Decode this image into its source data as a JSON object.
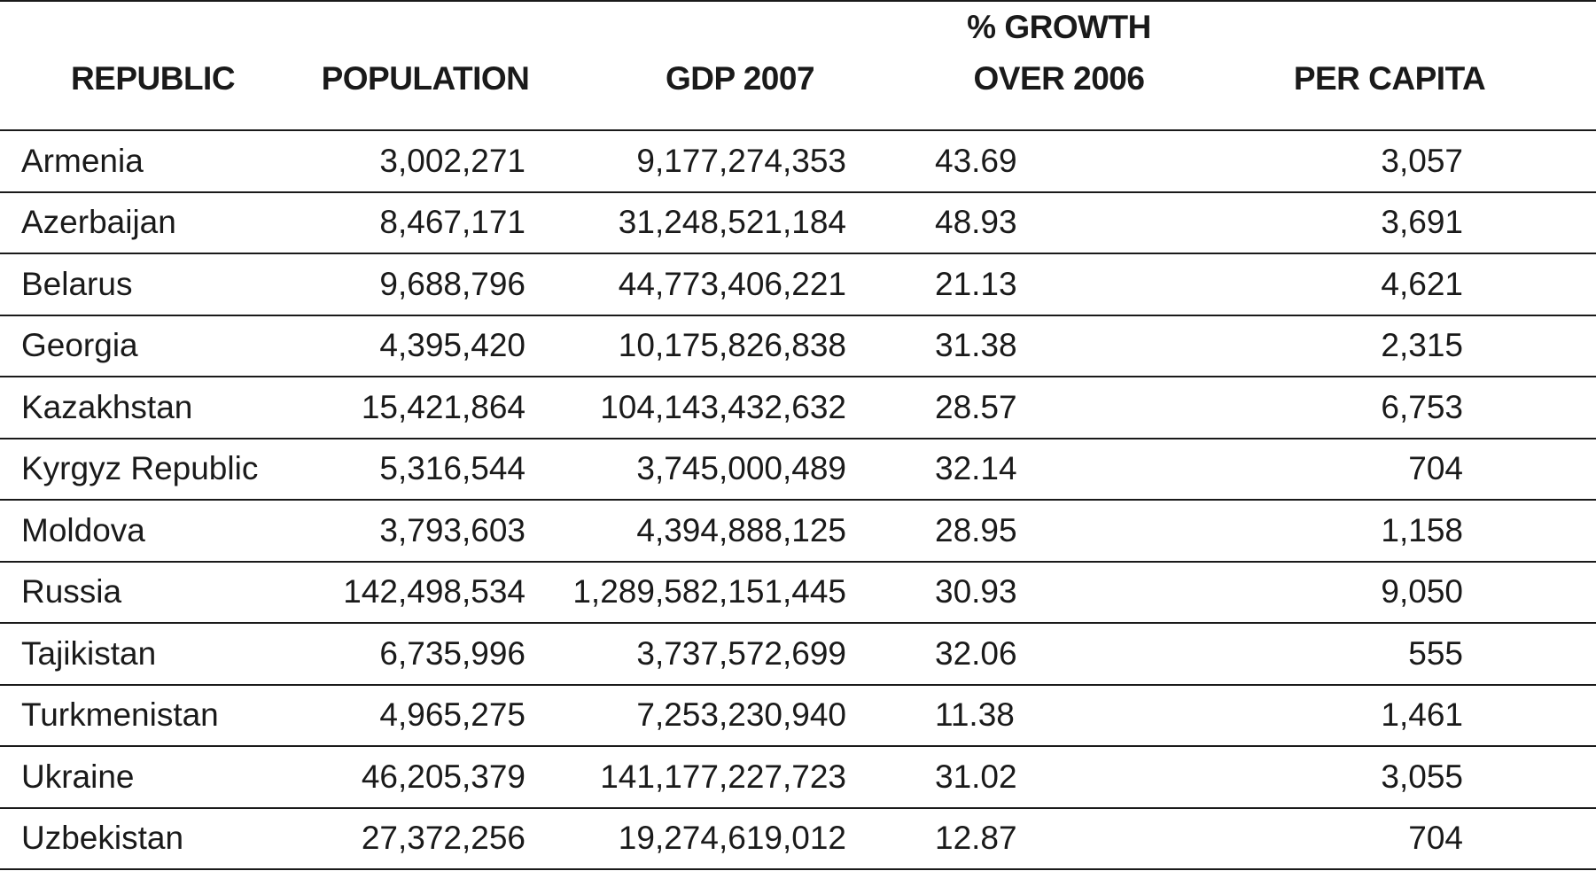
{
  "table": {
    "headers": {
      "republic": "REPUBLIC",
      "population": "POPULATION",
      "gdp": "GDP 2007",
      "growth_line1": "% GROWTH",
      "growth_line2": "OVER 2006",
      "per_capita": "PER CAPITA"
    },
    "rows": [
      {
        "republic": "Armenia",
        "population": "3,002,271",
        "gdp": "9,177,274,353",
        "growth": "43.69",
        "per_capita": "3,057"
      },
      {
        "republic": "Azerbaijan",
        "population": "8,467,171",
        "gdp": "31,248,521,184",
        "growth": "48.93",
        "per_capita": "3,691"
      },
      {
        "republic": "Belarus",
        "population": "9,688,796",
        "gdp": "44,773,406,221",
        "growth": "21.13",
        "per_capita": "4,621"
      },
      {
        "republic": "Georgia",
        "population": "4,395,420",
        "gdp": "10,175,826,838",
        "growth": "31.38",
        "per_capita": "2,315"
      },
      {
        "republic": "Kazakhstan",
        "population": "15,421,864",
        "gdp": "104,143,432,632",
        "growth": "28.57",
        "per_capita": "6,753"
      },
      {
        "republic": "Kyrgyz Republic",
        "population": "5,316,544",
        "gdp": "3,745,000,489",
        "growth": "32.14",
        "per_capita": "704"
      },
      {
        "republic": "Moldova",
        "population": "3,793,603",
        "gdp": "4,394,888,125",
        "growth": "28.95",
        "per_capita": "1,158"
      },
      {
        "republic": "Russia",
        "population": "142,498,534",
        "gdp": "1,289,582,151,445",
        "growth": "30.93",
        "per_capita": "9,050"
      },
      {
        "republic": "Tajikistan",
        "population": "6,735,996",
        "gdp": "3,737,572,699",
        "growth": "32.06",
        "per_capita": "555"
      },
      {
        "republic": "Turkmenistan",
        "population": "4,965,275",
        "gdp": "7,253,230,940",
        "growth": "11.38",
        "per_capita": "1,461"
      },
      {
        "republic": "Ukraine",
        "population": "46,205,379",
        "gdp": "141,177,227,723",
        "growth": "31.02",
        "per_capita": "3,055"
      },
      {
        "republic": "Uzbekistan",
        "population": "27,372,256",
        "gdp": "19,274,619,012",
        "growth": "12.87",
        "per_capita": "704"
      }
    ]
  }
}
